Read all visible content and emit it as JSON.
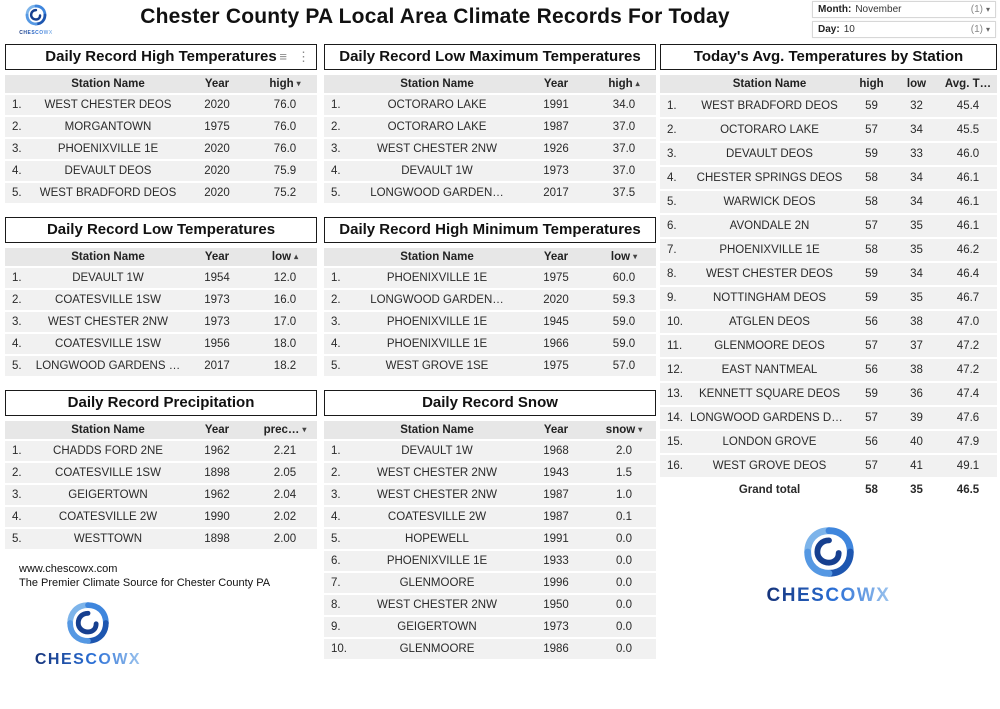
{
  "header": {
    "title": "Chester County PA Local Area Climate Records For Today",
    "filters": [
      {
        "label": "Month:",
        "value": "November",
        "count": "(1)"
      },
      {
        "label": "Day:",
        "value": "10",
        "count": "(1)"
      }
    ]
  },
  "icons": {
    "dropdown": "▾",
    "menu": "≡",
    "more": "⋮"
  },
  "branding": {
    "logo_text": "CHESCOWX",
    "website": "www.chescowx.com",
    "tagline": "The Premier Climate Source for Chester County PA"
  },
  "tables": {
    "record_high": {
      "title": "Daily Record High Temperatures",
      "columns": [
        {
          "label": ""
        },
        {
          "label": "Station Name"
        },
        {
          "label": "Year"
        },
        {
          "label": "high",
          "arrow": "▾"
        }
      ],
      "rows": [
        [
          "1.",
          "WEST CHESTER DEOS",
          "2020",
          "76.0"
        ],
        [
          "2.",
          "MORGANTOWN",
          "1975",
          "76.0"
        ],
        [
          "3.",
          "PHOENIXVILLE 1E",
          "2020",
          "76.0"
        ],
        [
          "4.",
          "DEVAULT DEOS",
          "2020",
          "75.9"
        ],
        [
          "5.",
          "WEST BRADFORD DEOS",
          "2020",
          "75.2"
        ]
      ]
    },
    "record_low": {
      "title": "Daily Record Low Temperatures",
      "columns": [
        {
          "label": ""
        },
        {
          "label": "Station Name"
        },
        {
          "label": "Year"
        },
        {
          "label": "low",
          "arrow": "▴"
        }
      ],
      "rows": [
        [
          "1.",
          "DEVAULT 1W",
          "1954",
          "12.0"
        ],
        [
          "2.",
          "COATESVILLE 1SW",
          "1973",
          "16.0"
        ],
        [
          "3.",
          "WEST CHESTER 2NW",
          "1973",
          "17.0"
        ],
        [
          "4.",
          "COATESVILLE 1SW",
          "1956",
          "18.0"
        ],
        [
          "5.",
          "LONGWOOD GARDENS …",
          "2017",
          "18.2"
        ]
      ]
    },
    "record_precip": {
      "title": "Daily Record Precipitation",
      "columns": [
        {
          "label": ""
        },
        {
          "label": "Station Name"
        },
        {
          "label": "Year"
        },
        {
          "label": "prec…",
          "arrow": "▾"
        }
      ],
      "rows": [
        [
          "1.",
          "CHADDS FORD 2NE",
          "1962",
          "2.21"
        ],
        [
          "2.",
          "COATESVILLE 1SW",
          "1898",
          "2.05"
        ],
        [
          "3.",
          "GEIGERTOWN",
          "1962",
          "2.04"
        ],
        [
          "4.",
          "COATESVILLE 2W",
          "1990",
          "2.02"
        ],
        [
          "5.",
          "WESTTOWN",
          "1898",
          "2.00"
        ]
      ]
    },
    "record_low_max": {
      "title": "Daily Record Low Maximum Temperatures",
      "columns": [
        {
          "label": ""
        },
        {
          "label": "Station Name"
        },
        {
          "label": "Year"
        },
        {
          "label": "high",
          "arrow": "▴"
        }
      ],
      "rows": [
        [
          "1.",
          "OCTORARO LAKE",
          "1991",
          "34.0"
        ],
        [
          "2.",
          "OCTORARO LAKE",
          "1987",
          "37.0"
        ],
        [
          "3.",
          "WEST CHESTER 2NW",
          "1926",
          "37.0"
        ],
        [
          "4.",
          "DEVAULT 1W",
          "1973",
          "37.0"
        ],
        [
          "5.",
          "LONGWOOD GARDEN…",
          "2017",
          "37.5"
        ]
      ]
    },
    "record_high_min": {
      "title": "Daily Record High Minimum Temperatures",
      "columns": [
        {
          "label": ""
        },
        {
          "label": "Station Name"
        },
        {
          "label": "Year"
        },
        {
          "label": "low",
          "arrow": "▾"
        }
      ],
      "rows": [
        [
          "1.",
          "PHOENIXVILLE 1E",
          "1975",
          "60.0"
        ],
        [
          "2.",
          "LONGWOOD GARDEN…",
          "2020",
          "59.3"
        ],
        [
          "3.",
          "PHOENIXVILLE 1E",
          "1945",
          "59.0"
        ],
        [
          "4.",
          "PHOENIXVILLE 1E",
          "1966",
          "59.0"
        ],
        [
          "5.",
          "WEST GROVE 1SE",
          "1975",
          "57.0"
        ]
      ]
    },
    "record_snow": {
      "title": "Daily Record Snow",
      "columns": [
        {
          "label": ""
        },
        {
          "label": "Station Name"
        },
        {
          "label": "Year"
        },
        {
          "label": "snow",
          "arrow": "▾"
        }
      ],
      "rows": [
        [
          "1.",
          "DEVAULT 1W",
          "1968",
          "2.0"
        ],
        [
          "2.",
          "WEST CHESTER 2NW",
          "1943",
          "1.5"
        ],
        [
          "3.",
          "WEST CHESTER 2NW",
          "1987",
          "1.0"
        ],
        [
          "4.",
          "COATESVILLE 2W",
          "1987",
          "0.1"
        ],
        [
          "5.",
          "HOPEWELL",
          "1991",
          "0.0"
        ],
        [
          "6.",
          "PHOENIXVILLE 1E",
          "1933",
          "0.0"
        ],
        [
          "7.",
          "GLENMOORE",
          "1996",
          "0.0"
        ],
        [
          "8.",
          "WEST CHESTER 2NW",
          "1950",
          "0.0"
        ],
        [
          "9.",
          "GEIGERTOWN",
          "1973",
          "0.0"
        ],
        [
          "10.",
          "GLENMOORE",
          "1986",
          "0.0"
        ]
      ]
    },
    "avg_temps": {
      "title": "Today's Avg. Temperatures by Station",
      "columns": [
        {
          "label": ""
        },
        {
          "label": "Station Name"
        },
        {
          "label": "high"
        },
        {
          "label": "low"
        },
        {
          "label": "Avg. T…"
        }
      ],
      "rows": [
        [
          "1.",
          "WEST BRADFORD DEOS",
          "59",
          "32",
          "45.4"
        ],
        [
          "2.",
          "OCTORARO LAKE",
          "57",
          "34",
          "45.5"
        ],
        [
          "3.",
          "DEVAULT DEOS",
          "59",
          "33",
          "46.0"
        ],
        [
          "4.",
          "CHESTER SPRINGS DEOS",
          "58",
          "34",
          "46.1"
        ],
        [
          "5.",
          "WARWICK DEOS",
          "58",
          "34",
          "46.1"
        ],
        [
          "6.",
          "AVONDALE 2N",
          "57",
          "35",
          "46.1"
        ],
        [
          "7.",
          "PHOENIXVILLE 1E",
          "58",
          "35",
          "46.2"
        ],
        [
          "8.",
          "WEST CHESTER DEOS",
          "59",
          "34",
          "46.4"
        ],
        [
          "9.",
          "NOTTINGHAM DEOS",
          "59",
          "35",
          "46.7"
        ],
        [
          "10.",
          "ATGLEN DEOS",
          "56",
          "38",
          "47.0"
        ],
        [
          "11.",
          "GLENMOORE DEOS",
          "57",
          "37",
          "47.2"
        ],
        [
          "12.",
          "EAST NANTMEAL",
          "56",
          "38",
          "47.2"
        ],
        [
          "13.",
          "KENNETT SQUARE DEOS",
          "59",
          "36",
          "47.4"
        ],
        [
          "14.",
          "LONGWOOD GARDENS DEOS",
          "57",
          "39",
          "47.6"
        ],
        [
          "15.",
          "LONDON GROVE",
          "56",
          "40",
          "47.9"
        ],
        [
          "16.",
          "WEST GROVE DEOS",
          "57",
          "41",
          "49.1"
        ]
      ],
      "grand_total": [
        "",
        "Grand total",
        "58",
        "35",
        "46.5"
      ]
    }
  }
}
